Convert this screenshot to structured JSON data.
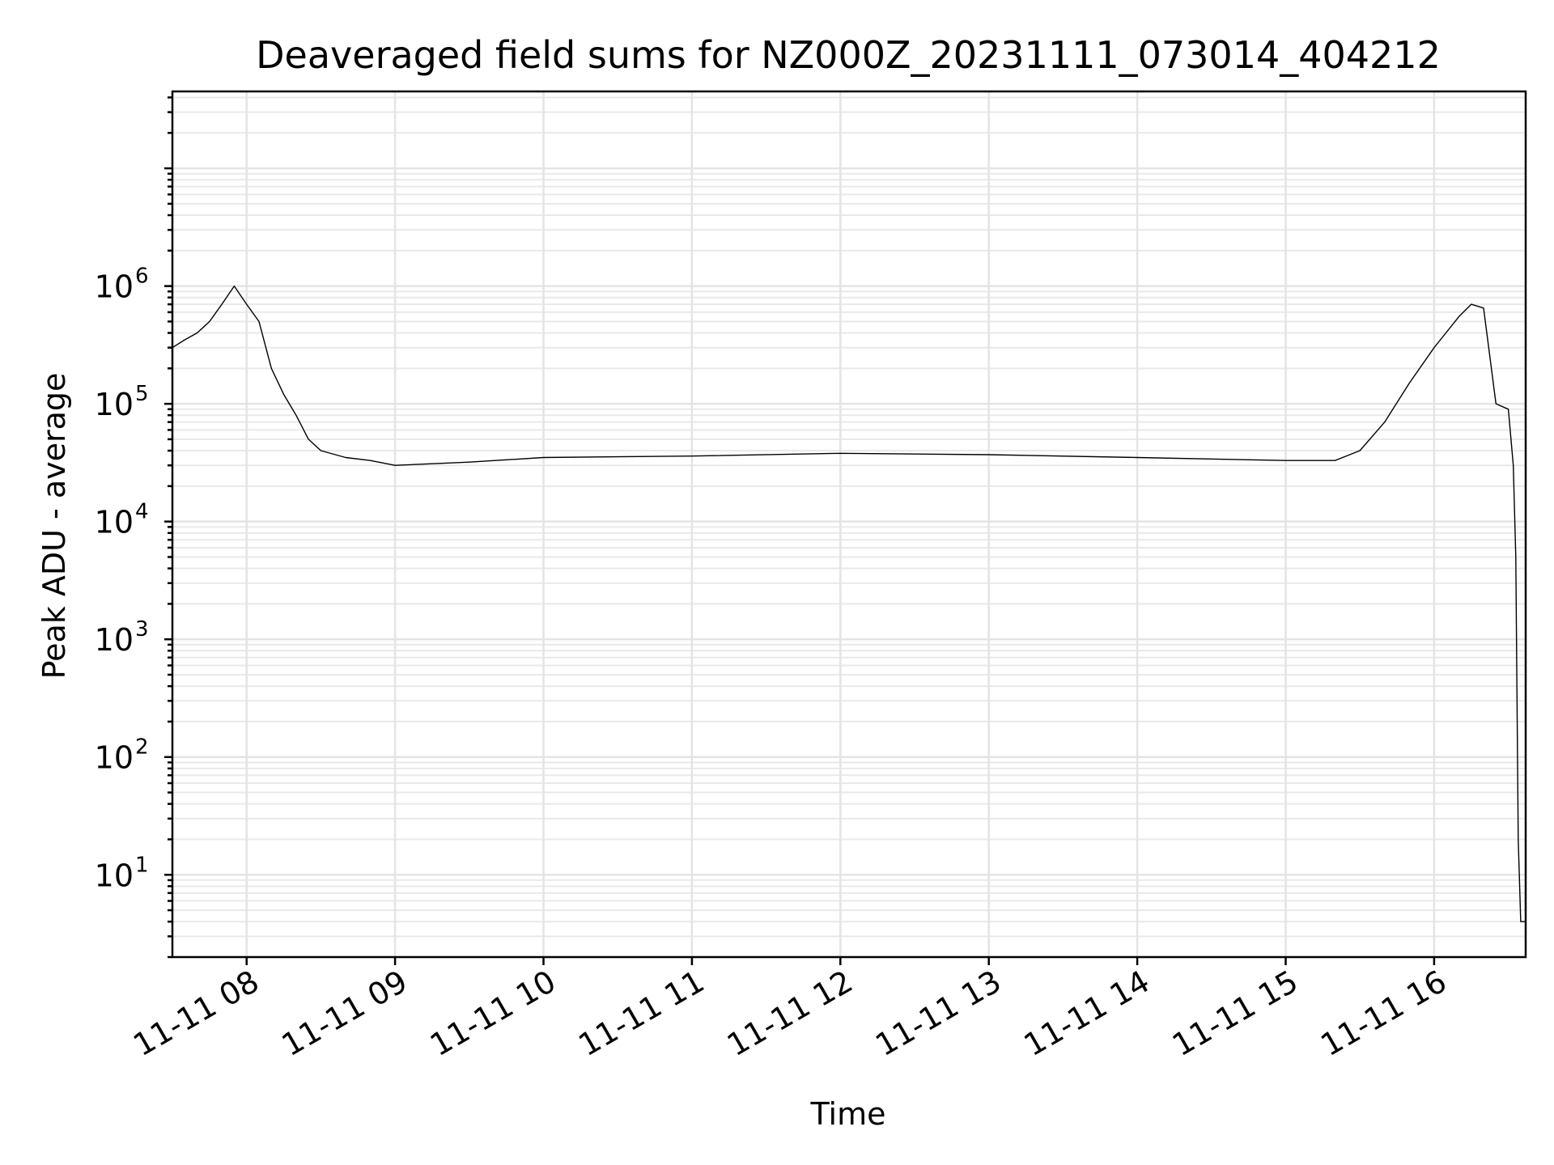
{
  "chart_data": {
    "type": "line",
    "title": "Deaveraged field sums for NZ000Z_20231111_073014_404212",
    "xlabel": "Time",
    "ylabel": "Peak ADU - average",
    "y_scale": "log",
    "xlim": [
      "2023-11-11T07:30",
      "2023-11-11T16:37"
    ],
    "ylim": [
      2,
      45000000
    ],
    "grid": true,
    "x_ticks": [
      "11-11 08",
      "11-11 09",
      "11-11 10",
      "11-11 11",
      "11-11 12",
      "11-11 13",
      "11-11 14",
      "11-11 15",
      "11-11 16"
    ],
    "y_ticks": [
      {
        "base": "10",
        "exp": "1"
      },
      {
        "base": "10",
        "exp": "2"
      },
      {
        "base": "10",
        "exp": "3"
      },
      {
        "base": "10",
        "exp": "4"
      },
      {
        "base": "10",
        "exp": "5"
      },
      {
        "base": "10",
        "exp": "6"
      }
    ],
    "series": [
      {
        "color": "#000000",
        "x": [
          "2023-11-11T07:30",
          "2023-11-11T07:35",
          "2023-11-11T07:40",
          "2023-11-11T07:45",
          "2023-11-11T07:50",
          "2023-11-11T07:55",
          "2023-11-11T08:00",
          "2023-11-11T08:05",
          "2023-11-11T08:10",
          "2023-11-11T08:15",
          "2023-11-11T08:20",
          "2023-11-11T08:25",
          "2023-11-11T08:30",
          "2023-11-11T08:40",
          "2023-11-11T08:50",
          "2023-11-11T09:00",
          "2023-11-11T09:30",
          "2023-11-11T10:00",
          "2023-11-11T11:00",
          "2023-11-11T12:00",
          "2023-11-11T13:00",
          "2023-11-11T14:00",
          "2023-11-11T15:00",
          "2023-11-11T15:20",
          "2023-11-11T15:30",
          "2023-11-11T15:40",
          "2023-11-11T15:50",
          "2023-11-11T16:00",
          "2023-11-11T16:10",
          "2023-11-11T16:15",
          "2023-11-11T16:20",
          "2023-11-11T16:25",
          "2023-11-11T16:30",
          "2023-11-11T16:32",
          "2023-11-11T16:33",
          "2023-11-11T16:34",
          "2023-11-11T16:35",
          "2023-11-11T16:37"
        ],
        "y": [
          300000,
          350000,
          400000,
          500000,
          700000,
          1000000,
          700000,
          500000,
          200000,
          120000,
          80000,
          50000,
          40000,
          35000,
          33000,
          30000,
          32000,
          35000,
          36000,
          38000,
          37000,
          35000,
          33000,
          33000,
          40000,
          70000,
          150000,
          300000,
          550000,
          700000,
          650000,
          100000,
          90000,
          30000,
          5000,
          20,
          4,
          4
        ]
      }
    ]
  }
}
